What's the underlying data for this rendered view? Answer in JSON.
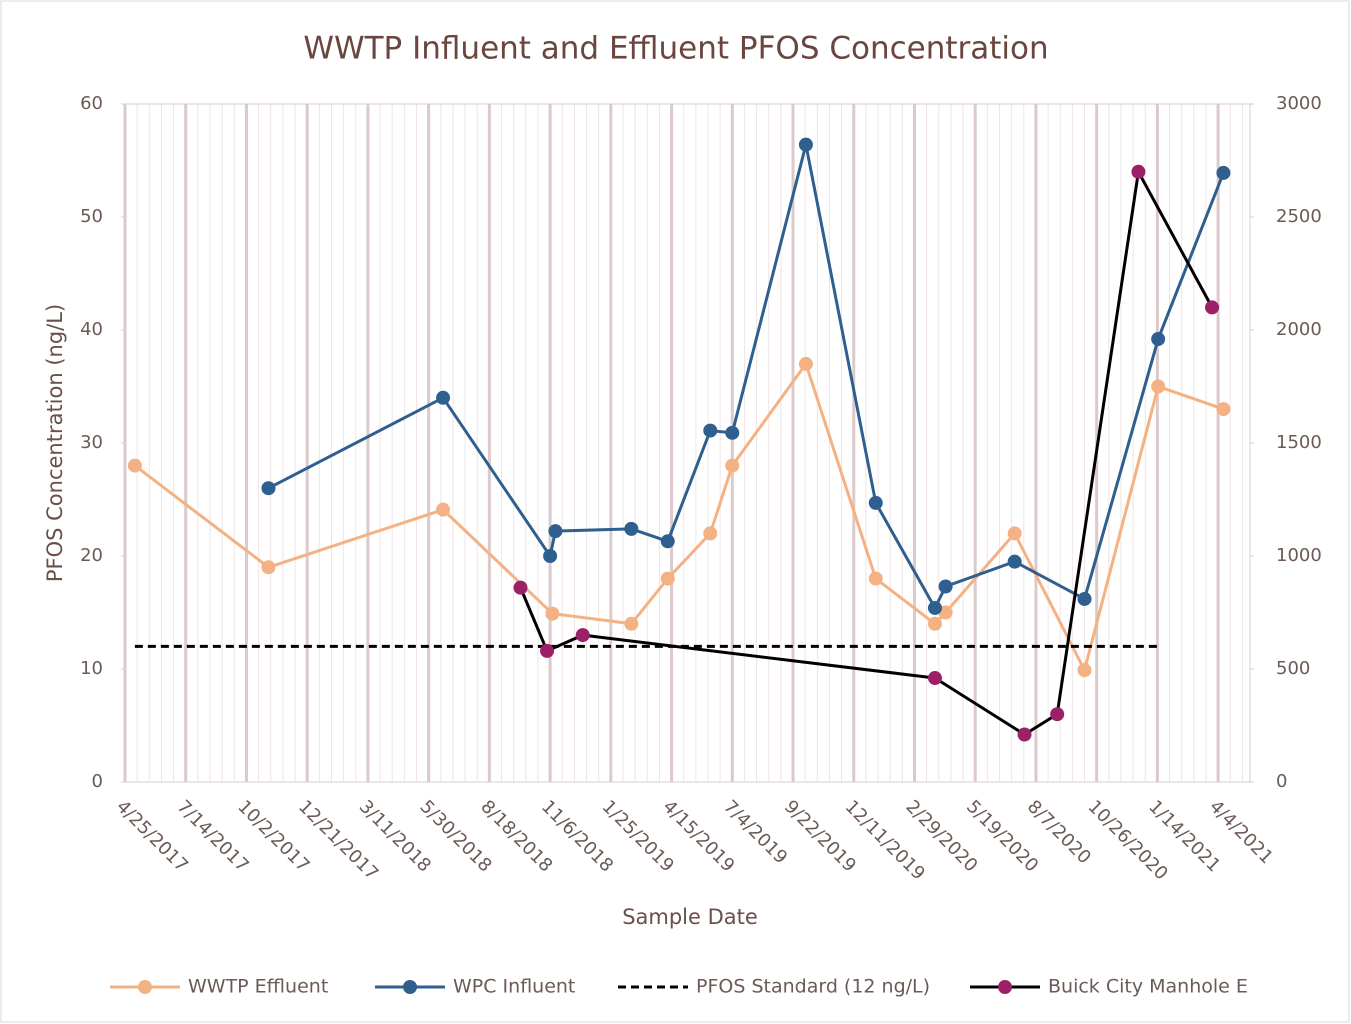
{
  "chart_data": {
    "type": "line",
    "title": "WWTP Influent and Effluent PFOS Concentration",
    "x_label": "Sample Date",
    "y_label": "PFOS Concentration (ng/L)",
    "xlim": [
      "2017-04-25",
      "2021-05-16"
    ],
    "xticks": [
      {
        "value": "2017-04-25",
        "label": "4/25/2017"
      },
      {
        "value": "2017-07-14",
        "label": "7/14/2017"
      },
      {
        "value": "2017-10-02",
        "label": "10/2/2017"
      },
      {
        "value": "2017-12-21",
        "label": "12/21/2017"
      },
      {
        "value": "2018-03-11",
        "label": "3/11/2018"
      },
      {
        "value": "2018-05-30",
        "label": "5/30/2018"
      },
      {
        "value": "2018-08-18",
        "label": "8/18/2018"
      },
      {
        "value": "2018-11-06",
        "label": "11/6/2018"
      },
      {
        "value": "2019-01-25",
        "label": "1/25/2019"
      },
      {
        "value": "2019-04-15",
        "label": "4/15/2019"
      },
      {
        "value": "2019-07-04",
        "label": "7/4/2019"
      },
      {
        "value": "2019-09-22",
        "label": "9/22/2019"
      },
      {
        "value": "2019-12-11",
        "label": "12/11/2019"
      },
      {
        "value": "2020-02-29",
        "label": "2/29/2020"
      },
      {
        "value": "2020-05-19",
        "label": "5/19/2020"
      },
      {
        "value": "2020-08-07",
        "label": "8/7/2020"
      },
      {
        "value": "2020-10-26",
        "label": "10/26/2020"
      },
      {
        "value": "2021-01-14",
        "label": "1/14/2021"
      },
      {
        "value": "2021-04-04",
        "label": "4/4/2021"
      }
    ],
    "ylim": [
      0,
      60
    ],
    "yticks": [
      0,
      10,
      20,
      30,
      40,
      50,
      60
    ],
    "y2lim": [
      0,
      3000
    ],
    "y2ticks": [
      0,
      500,
      1000,
      1500,
      2000,
      2500,
      3000
    ],
    "grid": "x",
    "legend": "bottom",
    "series": [
      {
        "name": "WWTP Effluent",
        "color": "#f4b183",
        "x": [
          "2017-05-08",
          "2017-10-31",
          "2018-06-18",
          "2018-11-09",
          "2019-02-21",
          "2019-04-10",
          "2019-06-05",
          "2019-07-04",
          "2019-10-09",
          "2020-01-09",
          "2020-03-27",
          "2020-04-10",
          "2020-07-10",
          "2020-10-10",
          "2021-01-15",
          "2021-04-11"
        ],
        "values": [
          28,
          19,
          24.1,
          14.9,
          14,
          18,
          22,
          28,
          37,
          18,
          14,
          15,
          22,
          9.9,
          35,
          33
        ]
      },
      {
        "name": "WPC Influent",
        "color": "#2f5f8f",
        "x": [
          "2017-10-31",
          "2018-06-18",
          "2018-11-06",
          "2018-11-13",
          "2019-02-21",
          "2019-04-10",
          "2019-06-05",
          "2019-07-04",
          "2019-10-09",
          "2020-01-09",
          "2020-03-27",
          "2020-04-10",
          "2020-07-10",
          "2020-10-10",
          "2021-01-15",
          "2021-04-11"
        ],
        "values": [
          26,
          34,
          20,
          22.2,
          22.4,
          21.3,
          31.1,
          30.9,
          56.4,
          24.7,
          15.4,
          17.3,
          19.5,
          16.2,
          39.2,
          53.9
        ]
      },
      {
        "name": "PFOS Standard (12 ng/L)",
        "color": "#000000",
        "dashed": true,
        "x": [
          "2017-05-08",
          "2021-01-15"
        ],
        "values": [
          12,
          12
        ]
      },
      {
        "name": "Buick City Manhole E",
        "color": "#000000",
        "marker_color": "#9b2067",
        "axis": "y2",
        "x": [
          "2018-09-28",
          "2018-11-02",
          "2018-12-19",
          "2020-03-27",
          "2020-07-23",
          "2020-09-04",
          "2020-12-20",
          "2021-03-27"
        ],
        "values": [
          860,
          580,
          650,
          460,
          210,
          300,
          2700,
          2100
        ]
      }
    ]
  }
}
